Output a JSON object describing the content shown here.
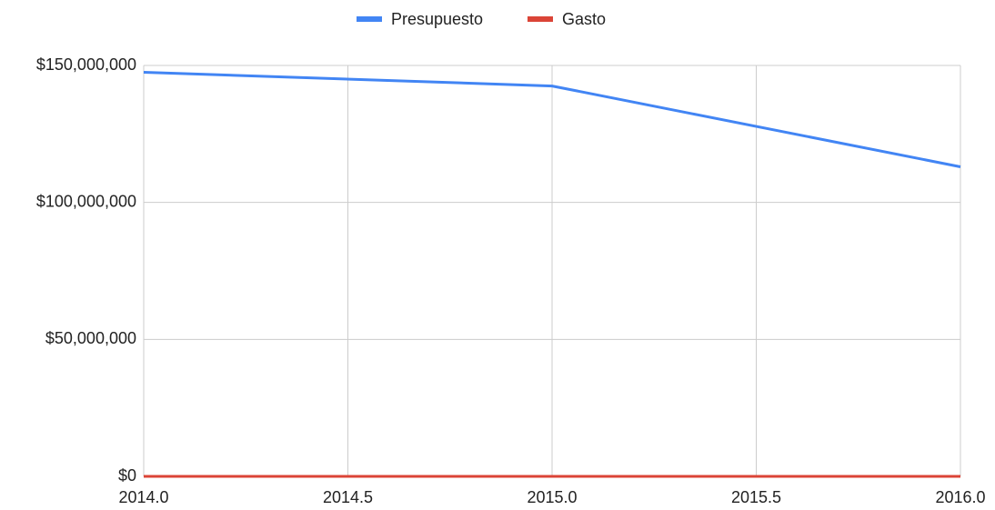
{
  "chart_data": {
    "type": "line",
    "x": [
      2014,
      2015,
      2016
    ],
    "series": [
      {
        "name": "Presupuesto",
        "color": "#4285f4",
        "values": [
          147500000,
          142500000,
          113000000
        ]
      },
      {
        "name": "Gasto",
        "color": "#db4437",
        "values": [
          0,
          0,
          0
        ]
      }
    ],
    "xlim": [
      2014,
      2016
    ],
    "xticks": [
      {
        "value": 2014,
        "label": "2014.0"
      },
      {
        "value": 2014.5,
        "label": "2014.5"
      },
      {
        "value": 2015,
        "label": "2015.0"
      },
      {
        "value": 2015.5,
        "label": "2015.5"
      },
      {
        "value": 2016,
        "label": "2016.0"
      }
    ],
    "ylim": [
      0,
      150000000
    ],
    "yticks": [
      {
        "value": 0,
        "label": "$0"
      },
      {
        "value": 50000000,
        "label": "$50,000,000"
      },
      {
        "value": 100000000,
        "label": "$100,000,000"
      },
      {
        "value": 150000000,
        "label": "$150,000,000"
      }
    ],
    "grid": true,
    "legend": "top"
  }
}
